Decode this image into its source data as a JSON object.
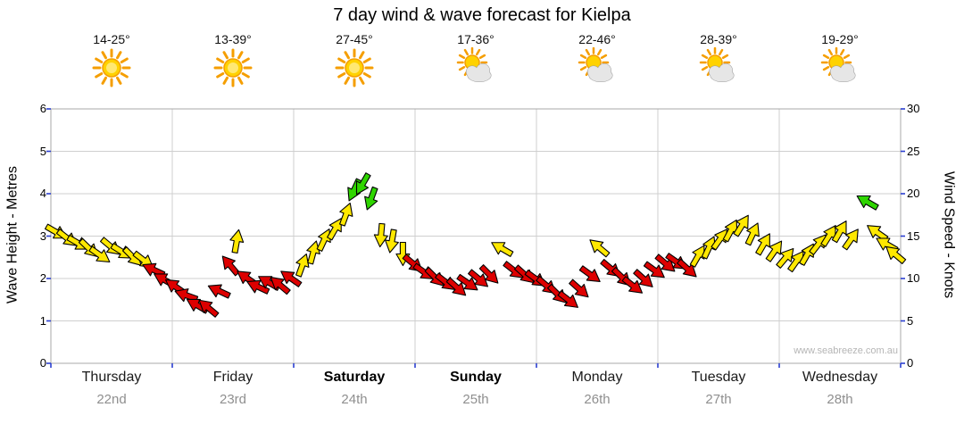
{
  "watermark": "www.seabreeze.com.au",
  "chart_data": {
    "type": "wind_wave_forecast_arrows",
    "title": "7 day wind & wave forecast for Kielpa",
    "ylabel_left": "Wave Height - Metres",
    "ylabel_right": "Wind Speed - Knots",
    "ylim_left": [
      0,
      6
    ],
    "ylim_right": [
      0,
      30
    ],
    "left_ticks": [
      0,
      1,
      2,
      3,
      4,
      5,
      6
    ],
    "right_ticks": [
      0,
      5,
      10,
      15,
      20,
      25,
      30
    ],
    "days": [
      {
        "name": "Thursday",
        "date": "22nd",
        "temp": "14-25°",
        "icon": "sunny",
        "emphasis": false
      },
      {
        "name": "Friday",
        "date": "23rd",
        "temp": "13-39°",
        "icon": "sunny",
        "emphasis": false
      },
      {
        "name": "Saturday",
        "date": "24th",
        "temp": "27-45°",
        "icon": "sunny",
        "emphasis": true
      },
      {
        "name": "Sunday",
        "date": "25th",
        "temp": "17-36°",
        "icon": "sun-cloud",
        "emphasis": true
      },
      {
        "name": "Monday",
        "date": "26th",
        "temp": "22-46°",
        "icon": "sun-cloud",
        "emphasis": false
      },
      {
        "name": "Tuesday",
        "date": "27th",
        "temp": "28-39°",
        "icon": "sun-cloud",
        "emphasis": false
      },
      {
        "name": "Wednesday",
        "date": "28th",
        "temp": "19-29°",
        "icon": "sun-cloud",
        "emphasis": false
      }
    ],
    "colors": {
      "r": "#dd0000",
      "y": "#ffe800",
      "g": "#2fd500"
    },
    "points_format": [
      "t_days_from_thursday",
      "wind_speed_knots",
      "color_key",
      "arrow_rotation_deg"
    ],
    "points": [
      [
        0.04,
        15.5,
        "y",
        30
      ],
      [
        0.13,
        14.8,
        "y",
        38
      ],
      [
        0.22,
        14.2,
        "y",
        30
      ],
      [
        0.31,
        13.6,
        "y",
        44
      ],
      [
        0.4,
        12.8,
        "y",
        35
      ],
      [
        0.49,
        13.8,
        "y",
        40
      ],
      [
        0.58,
        13.2,
        "y",
        32
      ],
      [
        0.67,
        12.6,
        "y",
        45
      ],
      [
        0.76,
        12.2,
        "y",
        38
      ],
      [
        0.85,
        11.0,
        "r",
        205
      ],
      [
        0.94,
        9.8,
        "r",
        210
      ],
      [
        1.03,
        9.0,
        "r",
        215
      ],
      [
        1.12,
        8.0,
        "r",
        200
      ],
      [
        1.21,
        6.8,
        "r",
        210
      ],
      [
        1.3,
        6.5,
        "r",
        220
      ],
      [
        1.39,
        8.5,
        "r",
        205
      ],
      [
        1.48,
        11.5,
        "r",
        230
      ],
      [
        1.53,
        14.3,
        "y",
        280
      ],
      [
        1.62,
        10.0,
        "r",
        215
      ],
      [
        1.71,
        9.0,
        "r",
        205
      ],
      [
        1.8,
        9.5,
        "r",
        210
      ],
      [
        1.89,
        9.2,
        "r",
        220
      ],
      [
        1.98,
        10.0,
        "r",
        215
      ],
      [
        2.07,
        11.5,
        "y",
        290
      ],
      [
        2.16,
        13.0,
        "y",
        285
      ],
      [
        2.25,
        14.5,
        "y",
        295
      ],
      [
        2.34,
        15.8,
        "y",
        300
      ],
      [
        2.43,
        17.5,
        "y",
        290
      ],
      [
        2.5,
        20.5,
        "g",
        115
      ],
      [
        2.57,
        21.2,
        "g",
        120
      ],
      [
        2.64,
        19.5,
        "g",
        110
      ],
      [
        2.72,
        15.2,
        "y",
        95
      ],
      [
        2.81,
        14.5,
        "y",
        100
      ],
      [
        2.9,
        13.0,
        "y",
        90
      ],
      [
        2.98,
        11.8,
        "r",
        40
      ],
      [
        3.07,
        10.8,
        "r",
        35
      ],
      [
        3.16,
        10.2,
        "r",
        45
      ],
      [
        3.25,
        9.6,
        "r",
        38
      ],
      [
        3.34,
        9.0,
        "r",
        42
      ],
      [
        3.43,
        9.5,
        "r",
        35
      ],
      [
        3.52,
        10.0,
        "r",
        40
      ],
      [
        3.61,
        10.5,
        "r",
        45
      ],
      [
        3.72,
        13.5,
        "y",
        210
      ],
      [
        3.81,
        11.0,
        "r",
        38
      ],
      [
        3.9,
        10.5,
        "r",
        42
      ],
      [
        3.99,
        10.0,
        "r",
        36
      ],
      [
        4.08,
        9.2,
        "r",
        40
      ],
      [
        4.17,
        8.2,
        "r",
        45
      ],
      [
        4.26,
        7.5,
        "r",
        38
      ],
      [
        4.35,
        8.8,
        "r",
        42
      ],
      [
        4.44,
        10.5,
        "r",
        36
      ],
      [
        4.52,
        13.6,
        "y",
        220
      ],
      [
        4.61,
        11.2,
        "r",
        40
      ],
      [
        4.7,
        10.2,
        "r",
        44
      ],
      [
        4.79,
        9.2,
        "r",
        38
      ],
      [
        4.88,
        10.0,
        "r",
        42
      ],
      [
        4.97,
        11.0,
        "r",
        36
      ],
      [
        5.06,
        11.8,
        "r",
        40
      ],
      [
        5.15,
        12.0,
        "r",
        35
      ],
      [
        5.24,
        11.2,
        "r",
        42
      ],
      [
        5.33,
        12.6,
        "y",
        300
      ],
      [
        5.42,
        13.6,
        "y",
        295
      ],
      [
        5.51,
        14.6,
        "y",
        305
      ],
      [
        5.6,
        15.6,
        "y",
        298
      ],
      [
        5.69,
        16.2,
        "y",
        302
      ],
      [
        5.78,
        15.2,
        "y",
        295
      ],
      [
        5.87,
        14.0,
        "y",
        300
      ],
      [
        5.96,
        13.2,
        "y",
        305
      ],
      [
        6.05,
        12.4,
        "y",
        310
      ],
      [
        6.14,
        12.0,
        "y",
        305
      ],
      [
        6.23,
        12.8,
        "y",
        300
      ],
      [
        6.32,
        14.0,
        "y",
        308
      ],
      [
        6.41,
        15.0,
        "y",
        302
      ],
      [
        6.5,
        15.5,
        "y",
        300
      ],
      [
        6.59,
        14.6,
        "y",
        305
      ],
      [
        6.73,
        19.0,
        "g",
        210
      ],
      [
        6.81,
        15.4,
        "y",
        215
      ],
      [
        6.89,
        14.0,
        "y",
        210
      ],
      [
        6.96,
        12.8,
        "y",
        220
      ]
    ]
  }
}
